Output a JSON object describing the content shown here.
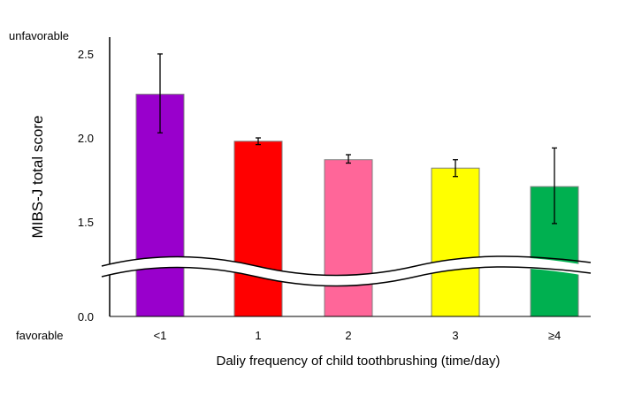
{
  "chart_data": {
    "type": "bar",
    "title": "",
    "xlabel": "Daliy frequency of child toothbrushing (time/day)",
    "ylabel": "MIBS-J total score",
    "categories": [
      "<1",
      "1",
      "2",
      "3",
      "≥4"
    ],
    "values": [
      2.26,
      1.98,
      1.87,
      1.82,
      1.71
    ],
    "error_low": [
      2.03,
      1.96,
      1.85,
      1.77,
      1.49
    ],
    "error_high": [
      2.5,
      2.0,
      1.9,
      1.87,
      1.94
    ],
    "colors": [
      "#9900CC",
      "#FF0000",
      "#FF6699",
      "#FFFF00",
      "#00B050"
    ],
    "yticks": [
      "0.0",
      "1.5",
      "2.0",
      "2.5"
    ],
    "axis_break": true,
    "top_annotation": "unfavorable",
    "bottom_annotation": "favorable",
    "grid": false,
    "legend": "none"
  }
}
